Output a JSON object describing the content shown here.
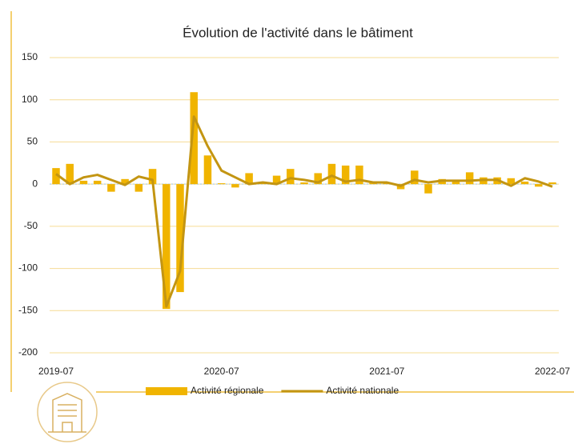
{
  "chart_data": {
    "type": "combo",
    "title": "Évolution de l'activité dans le bâtiment",
    "categories": [
      "2019-07",
      null,
      null,
      null,
      null,
      null,
      null,
      null,
      null,
      null,
      null,
      null,
      "2020-07",
      null,
      null,
      null,
      null,
      null,
      null,
      null,
      null,
      null,
      null,
      null,
      "2021-07",
      null,
      null,
      null,
      null,
      null,
      null,
      null,
      null,
      null,
      null,
      null,
      "2022-07"
    ],
    "series": [
      {
        "name": "Activité régionale",
        "type": "bar",
        "color": "#f0b400",
        "values": [
          19,
          24,
          4,
          4,
          -9,
          6,
          -9,
          18,
          -148,
          -128,
          109,
          34,
          1,
          -4,
          13,
          3,
          10,
          18,
          2,
          13,
          24,
          22,
          22,
          3,
          2,
          -6,
          16,
          -11,
          6,
          3,
          14,
          8,
          8,
          7,
          3,
          -3,
          2
        ]
      },
      {
        "name": "Activité nationale",
        "type": "line",
        "color": "#c39512",
        "values": [
          12,
          0,
          8,
          11,
          5,
          -1,
          9,
          5,
          -145,
          -103,
          80,
          45,
          16,
          8,
          0,
          2,
          0,
          7,
          5,
          2,
          10,
          3,
          5,
          2,
          2,
          -2,
          5,
          2,
          4,
          4,
          4,
          5,
          5,
          -2,
          7,
          3,
          -3
        ]
      }
    ],
    "ylim": [
      -200,
      150
    ],
    "yticks": [
      -200,
      -150,
      -100,
      -50,
      0,
      50,
      100,
      150
    ],
    "grid": true
  }
}
